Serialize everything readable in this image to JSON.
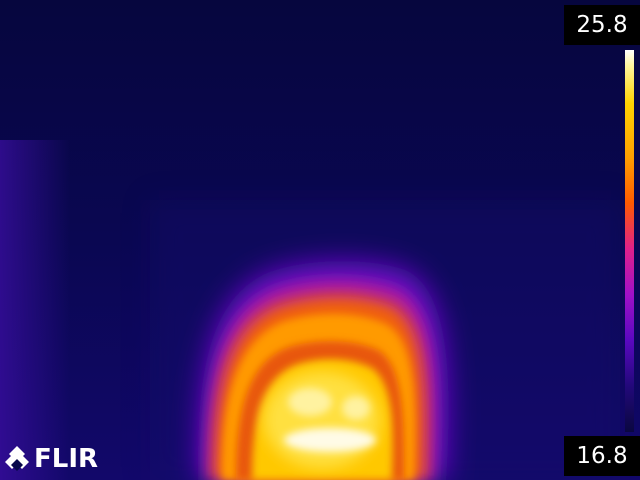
{
  "scale": {
    "max_label": "25.8",
    "min_label": "16.8"
  },
  "logo": {
    "text": "FLIR"
  },
  "palette": {
    "background": "#07074a",
    "cold": "#2a0a8a",
    "warm": "#ff5a00",
    "hot": "#ffd200",
    "hottest": "#ffffff"
  }
}
